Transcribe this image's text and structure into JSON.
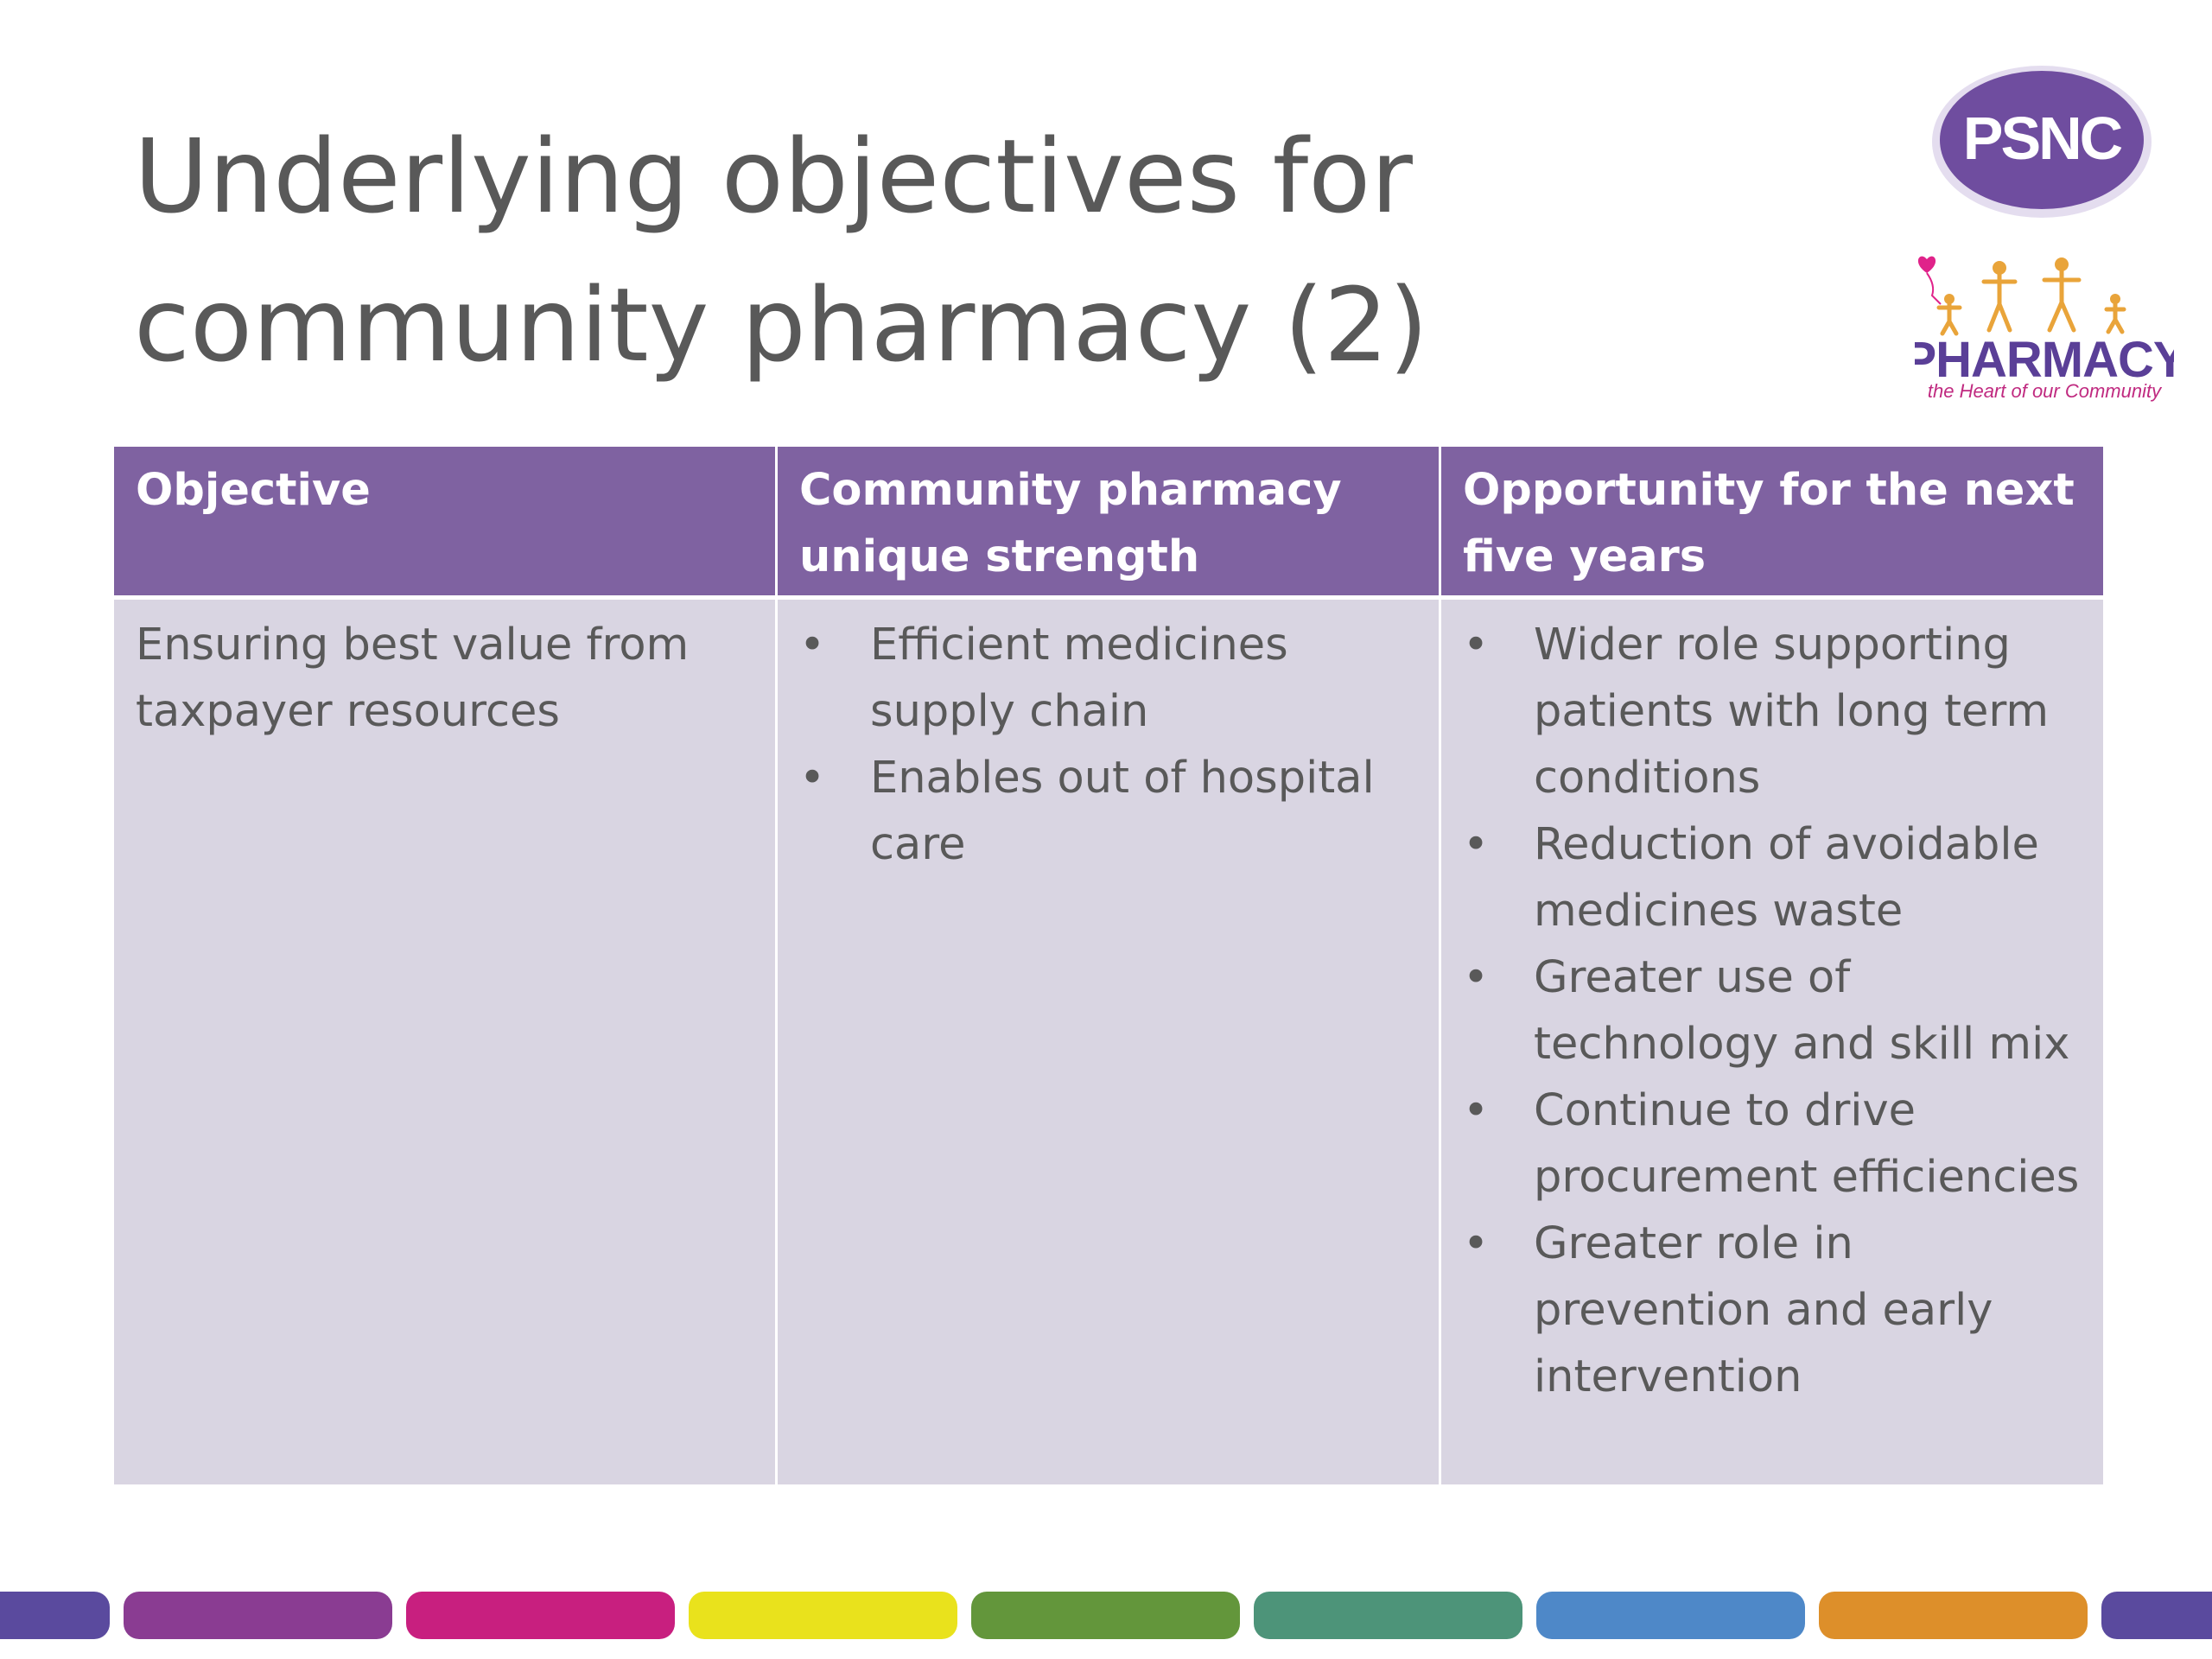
{
  "slide": {
    "title_line1": "Underlying objectives for",
    "title_line2": "community pharmacy (2)"
  },
  "logos": {
    "psnc_text": "PSNC",
    "pharmacy_text": "PHARMACY",
    "pharmacy_tagline": "the Heart of our Community"
  },
  "table": {
    "headers": [
      "Objective",
      "Community pharmacy unique strength",
      "Opportunity for the next five years"
    ],
    "row": {
      "objective": "Ensuring best value from taxpayer resources",
      "strengths": [
        "Efficient medicines supply chain",
        "Enables out of hospital care"
      ],
      "opportunities": [
        "Wider role supporting patients with long term conditions",
        "Reduction of avoidable medicines waste",
        "Greater use of technology and skill mix",
        "Continue to drive procurement efficiencies",
        "Greater role in prevention and early intervention"
      ]
    }
  },
  "colors": {
    "header_purple": "#7f62a1",
    "cell_lavender": "#d9d5e2",
    "title_grey": "#595959",
    "bottom_bars": [
      "#5a4a9e",
      "#8a3c92",
      "#c81f7f",
      "#e9e21c",
      "#63963b",
      "#4d9479",
      "#4e88c8",
      "#dd8f2a",
      "#5a4a9e"
    ]
  }
}
